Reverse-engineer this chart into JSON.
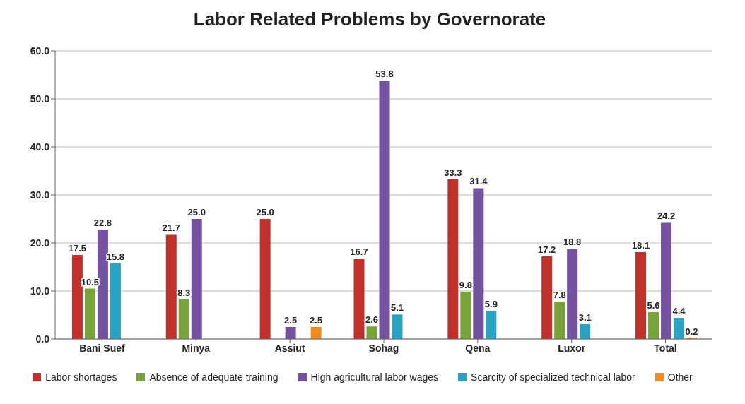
{
  "chart_data": {
    "type": "bar",
    "title": "Labor Related Problems by Governorate",
    "categories": [
      "Bani Suef",
      "Minya",
      "Assiut",
      "Sohag",
      "Qena",
      "Luxor",
      "Total"
    ],
    "series": [
      {
        "name": "Labor shortages",
        "color": "#c0312b",
        "values": [
          17.5,
          21.7,
          25.0,
          16.7,
          33.3,
          17.2,
          18.1
        ],
        "value_labels": [
          "17.5",
          "21.7",
          "25.0",
          "16.7",
          "33.3",
          "17.2",
          "18.1"
        ]
      },
      {
        "name": "Absence of adequate training",
        "color": "#77a33a",
        "values": [
          10.5,
          8.3,
          null,
          2.6,
          9.8,
          7.8,
          5.6
        ],
        "value_labels": [
          "10.5",
          "8.3",
          null,
          "2.6",
          "9.8",
          "7.8",
          "5.6"
        ]
      },
      {
        "name": "High agricultural labor wages",
        "color": "#7352a0",
        "values": [
          22.8,
          25.0,
          2.5,
          53.8,
          31.4,
          18.8,
          24.2
        ],
        "value_labels": [
          "22.8",
          "25.0",
          "2.5",
          "53.8",
          "31.4",
          "18.8",
          "24.2"
        ]
      },
      {
        "name": "Scarcity of specialized technical labor",
        "color": "#2aa3c3",
        "values": [
          15.8,
          null,
          null,
          5.1,
          5.9,
          3.1,
          4.4
        ],
        "value_labels": [
          "15.8",
          null,
          null,
          "5.1",
          "5.9",
          "3.1",
          "4.4"
        ]
      },
      {
        "name": "Other",
        "color": "#f18a1f",
        "values": [
          null,
          null,
          2.5,
          null,
          null,
          null,
          0.2
        ],
        "value_labels": [
          null,
          null,
          "2.5",
          null,
          null,
          null,
          "0.2"
        ]
      }
    ],
    "ylim": [
      0,
      60
    ],
    "yticks": [
      {
        "value": 0,
        "label": "0.0"
      },
      {
        "value": 10,
        "label": "10.0"
      },
      {
        "value": 20,
        "label": "20.0"
      },
      {
        "value": 30,
        "label": "30.0"
      },
      {
        "value": 40,
        "label": "40.0"
      },
      {
        "value": 50,
        "label": "50.0"
      },
      {
        "value": 60,
        "label": "60.0"
      }
    ],
    "grid": "y",
    "legend": "bottom"
  }
}
